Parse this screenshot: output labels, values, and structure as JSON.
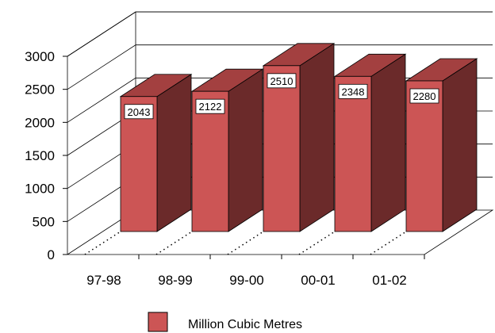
{
  "chart_data": {
    "type": "bar",
    "title": "",
    "xlabel": "",
    "ylabel": "",
    "categories": [
      "97-98",
      "98-99",
      "99-00",
      "00-01",
      "01-02"
    ],
    "series": [
      {
        "name": "Million Cubic Metres",
        "values": [
          2043,
          2122,
          2510,
          2348,
          2280
        ]
      }
    ],
    "ylim": [
      0,
      3000
    ],
    "yticks": [
      "0",
      "500",
      "1000",
      "1500",
      "2000",
      "2500",
      "3000"
    ],
    "data_labels": [
      "2043",
      "2122",
      "2510",
      "2348",
      "2280"
    ],
    "legend": "bottom-center",
    "grid": true,
    "three_d": true,
    "colors": {
      "front": "#cc5555",
      "top": "#a34040",
      "side": "#6b2a2a",
      "outline": "#000000",
      "grid": "#000000"
    }
  }
}
